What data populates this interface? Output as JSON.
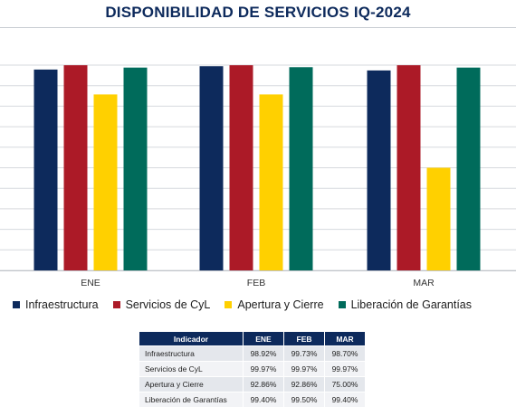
{
  "title": "DISPONIBILIDAD DE SERVICIOS IQ-2024",
  "colors": {
    "title": "#0d2a5c",
    "Infraestructura": "#0d2a5c",
    "Servicios de CyL": "#ac1a27",
    "Apertura y Cierre": "#ffd000",
    "Liberación de Garantías": "#006b5b",
    "table_header": "#0d2a5c"
  },
  "chart_data": {
    "type": "bar",
    "title": "DISPONIBILIDAD DE SERVICIOS IQ-2024",
    "categories": [
      "ENE",
      "FEB",
      "MAR"
    ],
    "series": [
      {
        "name": "Infraestructura",
        "values": [
          98.92,
          99.73,
          98.7
        ]
      },
      {
        "name": "Servicios de CyL",
        "values": [
          99.97,
          99.97,
          99.97
        ]
      },
      {
        "name": "Apertura y Cierre",
        "values": [
          92.86,
          92.86,
          75.0
        ]
      },
      {
        "name": "Liberación de Garantías",
        "values": [
          99.4,
          99.5,
          99.4
        ]
      }
    ],
    "ylim": [
      50,
      100
    ],
    "grid": true,
    "legend": "bottom"
  },
  "table": {
    "headers": [
      "Indicador",
      "ENE",
      "FEB",
      "MAR"
    ],
    "rows": [
      [
        "Infraestructura",
        "98.92%",
        "99.73%",
        "98.70%"
      ],
      [
        "Servicios de CyL",
        "99.97%",
        "99.97%",
        "99.97%"
      ],
      [
        "Apertura y Cierre",
        "92.86%",
        "92.86%",
        "75.00%"
      ],
      [
        "Liberación de Garantías",
        "99.40%",
        "99.50%",
        "99.40%"
      ]
    ]
  }
}
